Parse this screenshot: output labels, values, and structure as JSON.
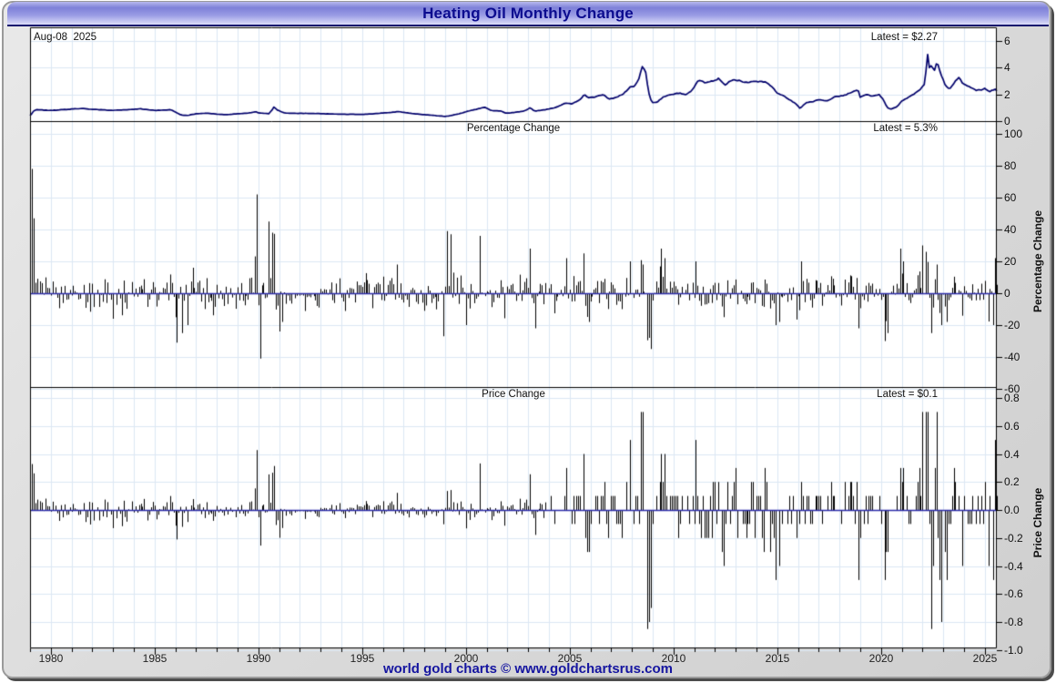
{
  "window": {
    "title": "Heating Oil Monthly Change"
  },
  "header": {
    "date_label": "Aug-08  2025"
  },
  "footer": {
    "credit": "world gold charts © www.goldchartsrus.com"
  },
  "colors": {
    "title_text": "#0b0b8f",
    "line": "#00006b",
    "bars": "#000000",
    "zero_line": "#2d2daa",
    "grid": "#dce8f4",
    "panel_bg": "#ffffff",
    "border": "#000000",
    "footer_text": "#1515a0"
  },
  "chart_data": [
    {
      "type": "line",
      "name": "heating-oil-price",
      "latest_label": "Latest = $2.27",
      "latest_value": 2.27,
      "ylim": [
        0,
        6.8
      ],
      "y_ticks": [
        [
          "6",
          6
        ],
        [
          "4",
          4
        ],
        [
          "2",
          2
        ],
        [
          "0",
          0
        ]
      ],
      "keypoints": [
        [
          1979.0,
          0.42
        ],
        [
          1979.08,
          0.55
        ],
        [
          1979.17,
          0.75
        ],
        [
          1979.3,
          0.85
        ],
        [
          1979.6,
          0.83
        ],
        [
          1980.0,
          0.8
        ],
        [
          1980.5,
          0.85
        ],
        [
          1981.0,
          0.9
        ],
        [
          1981.5,
          0.95
        ],
        [
          1982.0,
          0.88
        ],
        [
          1982.5,
          0.85
        ],
        [
          1983.0,
          0.8
        ],
        [
          1983.5,
          0.85
        ],
        [
          1984.0,
          0.88
        ],
        [
          1984.3,
          0.92
        ],
        [
          1985.0,
          0.8
        ],
        [
          1985.8,
          0.85
        ],
        [
          1986.1,
          0.6
        ],
        [
          1986.3,
          0.45
        ],
        [
          1986.6,
          0.42
        ],
        [
          1986.8,
          0.5
        ],
        [
          1987.0,
          0.55
        ],
        [
          1987.5,
          0.6
        ],
        [
          1988.0,
          0.52
        ],
        [
          1988.5,
          0.48
        ],
        [
          1989.0,
          0.55
        ],
        [
          1989.5,
          0.6
        ],
        [
          1989.9,
          0.7
        ],
        [
          1990.0,
          0.62
        ],
        [
          1990.5,
          0.55
        ],
        [
          1990.7,
          0.9
        ],
        [
          1990.75,
          1.05
        ],
        [
          1990.9,
          0.85
        ],
        [
          1991.1,
          0.7
        ],
        [
          1991.3,
          0.6
        ],
        [
          1992.0,
          0.58
        ],
        [
          1993.0,
          0.56
        ],
        [
          1994.0,
          0.52
        ],
        [
          1995.0,
          0.5
        ],
        [
          1996.0,
          0.6
        ],
        [
          1996.8,
          0.72
        ],
        [
          1997.0,
          0.65
        ],
        [
          1997.5,
          0.55
        ],
        [
          1998.0,
          0.48
        ],
        [
          1998.5,
          0.42
        ],
        [
          1999.0,
          0.35
        ],
        [
          1999.3,
          0.42
        ],
        [
          1999.8,
          0.6
        ],
        [
          2000.1,
          0.75
        ],
        [
          2000.7,
          0.95
        ],
        [
          2000.9,
          1.05
        ],
        [
          2001.2,
          0.8
        ],
        [
          2001.7,
          0.75
        ],
        [
          2001.9,
          0.6
        ],
        [
          2002.2,
          0.62
        ],
        [
          2002.8,
          0.75
        ],
        [
          2003.1,
          1.0
        ],
        [
          2003.3,
          0.75
        ],
        [
          2003.8,
          0.85
        ],
        [
          2004.3,
          1.0
        ],
        [
          2004.8,
          1.35
        ],
        [
          2005.1,
          1.3
        ],
        [
          2005.5,
          1.6
        ],
        [
          2005.7,
          2.0
        ],
        [
          2005.9,
          1.75
        ],
        [
          2006.2,
          1.8
        ],
        [
          2006.6,
          2.0
        ],
        [
          2006.9,
          1.65
        ],
        [
          2007.2,
          1.75
        ],
        [
          2007.6,
          2.05
        ],
        [
          2007.9,
          2.55
        ],
        [
          2008.1,
          2.6
        ],
        [
          2008.3,
          3.0
        ],
        [
          2008.5,
          4.1
        ],
        [
          2008.65,
          3.8
        ],
        [
          2008.8,
          2.2
        ],
        [
          2008.95,
          1.4
        ],
        [
          2009.2,
          1.4
        ],
        [
          2009.5,
          1.8
        ],
        [
          2009.9,
          2.0
        ],
        [
          2010.3,
          2.1
        ],
        [
          2010.6,
          1.95
        ],
        [
          2010.9,
          2.3
        ],
        [
          2011.2,
          3.05
        ],
        [
          2011.5,
          2.9
        ],
        [
          2011.9,
          3.0
        ],
        [
          2012.2,
          3.2
        ],
        [
          2012.5,
          2.7
        ],
        [
          2012.8,
          3.1
        ],
        [
          2013.1,
          3.05
        ],
        [
          2013.5,
          2.9
        ],
        [
          2013.9,
          3.0
        ],
        [
          2014.2,
          2.95
        ],
        [
          2014.5,
          2.9
        ],
        [
          2014.8,
          2.5
        ],
        [
          2015.0,
          2.1
        ],
        [
          2015.3,
          1.9
        ],
        [
          2015.5,
          1.7
        ],
        [
          2015.9,
          1.3
        ],
        [
          2016.1,
          0.95
        ],
        [
          2016.4,
          1.4
        ],
        [
          2016.7,
          1.45
        ],
        [
          2017.0,
          1.6
        ],
        [
          2017.4,
          1.5
        ],
        [
          2017.8,
          1.85
        ],
        [
          2018.2,
          1.9
        ],
        [
          2018.7,
          2.25
        ],
        [
          2018.9,
          2.3
        ],
        [
          2019.0,
          1.8
        ],
        [
          2019.3,
          2.0
        ],
        [
          2019.6,
          1.85
        ],
        [
          2019.9,
          2.0
        ],
        [
          2020.1,
          1.65
        ],
        [
          2020.3,
          1.0
        ],
        [
          2020.5,
          0.9
        ],
        [
          2020.8,
          1.1
        ],
        [
          2021.0,
          1.5
        ],
        [
          2021.3,
          1.75
        ],
        [
          2021.6,
          2.05
        ],
        [
          2021.9,
          2.4
        ],
        [
          2022.1,
          2.8
        ],
        [
          2022.2,
          4.2
        ],
        [
          2022.25,
          5.0
        ],
        [
          2022.35,
          3.8
        ],
        [
          2022.45,
          4.3
        ],
        [
          2022.55,
          3.6
        ],
        [
          2022.7,
          4.5
        ],
        [
          2022.8,
          3.9
        ],
        [
          2022.95,
          3.3
        ],
        [
          2023.1,
          2.7
        ],
        [
          2023.3,
          2.4
        ],
        [
          2023.6,
          3.0
        ],
        [
          2023.75,
          3.3
        ],
        [
          2023.9,
          2.9
        ],
        [
          2024.1,
          2.7
        ],
        [
          2024.3,
          2.55
        ],
        [
          2024.6,
          2.3
        ],
        [
          2024.9,
          2.35
        ],
        [
          2025.0,
          2.45
        ],
        [
          2025.2,
          2.2
        ],
        [
          2025.35,
          2.3
        ],
        [
          2025.5,
          2.4
        ],
        [
          2025.58,
          2.27
        ]
      ]
    },
    {
      "type": "bar",
      "name": "percentage-change",
      "caption": "Percentage Change",
      "axis_label": "Percentage Change",
      "latest_label": "Latest = 5.3%",
      "latest_value": 5.3,
      "ylim": [
        -60,
        100
      ],
      "y_ticks": [
        [
          "100",
          100
        ],
        [
          "80",
          80
        ],
        [
          "60",
          60
        ],
        [
          "40",
          40
        ],
        [
          "20",
          20
        ],
        [
          "0",
          0
        ],
        [
          "-20",
          -20
        ],
        [
          "-40",
          -40
        ],
        [
          "-60",
          -60
        ]
      ],
      "noise_amplitude": 8,
      "spikes": [
        [
          1979.08,
          78
        ],
        [
          1979.17,
          47
        ],
        [
          1983.0,
          -16
        ],
        [
          1986.1,
          -31
        ],
        [
          1986.3,
          -25
        ],
        [
          1986.6,
          -20
        ],
        [
          1986.8,
          16
        ],
        [
          1989.9,
          62
        ],
        [
          1990.1,
          -41
        ],
        [
          1990.5,
          45
        ],
        [
          1990.7,
          38
        ],
        [
          1991.0,
          -24
        ],
        [
          1991.2,
          -18
        ],
        [
          1996.7,
          18
        ],
        [
          1998.9,
          -27
        ],
        [
          1999.1,
          39
        ],
        [
          1999.25,
          37
        ],
        [
          2000.0,
          -20
        ],
        [
          2000.7,
          36
        ],
        [
          2003.1,
          28
        ],
        [
          2003.3,
          -22
        ],
        [
          2004.8,
          22
        ],
        [
          2005.7,
          25
        ],
        [
          2005.9,
          -18
        ],
        [
          2007.9,
          20
        ],
        [
          2008.5,
          18
        ],
        [
          2008.8,
          -28
        ],
        [
          2008.95,
          -35
        ],
        [
          2009.4,
          28
        ],
        [
          2009.55,
          22
        ],
        [
          2011.1,
          20
        ],
        [
          2012.4,
          -15
        ],
        [
          2014.9,
          -20
        ],
        [
          2015.1,
          -18
        ],
        [
          2016.2,
          20
        ],
        [
          2018.9,
          -22
        ],
        [
          2020.2,
          -30
        ],
        [
          2020.35,
          -25
        ],
        [
          2020.9,
          28
        ],
        [
          2021.1,
          20
        ],
        [
          2022.0,
          30
        ],
        [
          2022.2,
          26
        ],
        [
          2022.4,
          -25
        ],
        [
          2022.7,
          18
        ],
        [
          2022.9,
          -20
        ],
        [
          2023.2,
          -18
        ],
        [
          2025.4,
          -20
        ],
        [
          2025.5,
          22
        ],
        [
          2025.583,
          5.3
        ]
      ]
    },
    {
      "type": "bar",
      "name": "price-change",
      "caption": "Price Change",
      "axis_label": "Price Change",
      "latest_label": "Latest = $0.1",
      "latest_value": 0.1,
      "ylim": [
        -1.0,
        0.8
      ],
      "y_ticks": [
        [
          "0.8",
          0.8
        ],
        [
          "0.6",
          0.6
        ],
        [
          "0.4",
          0.4
        ],
        [
          "0.2",
          0.2
        ],
        [
          "0.0",
          0.0
        ],
        [
          "-0.2",
          -0.2
        ],
        [
          "-0.4",
          -0.4
        ],
        [
          "-0.6",
          -0.6
        ],
        [
          "-0.8",
          -0.8
        ],
        [
          "-1.0",
          -1.0
        ]
      ],
      "derived": "monthly percentage change times prior price, dollars per gallon"
    }
  ],
  "x_axis": {
    "start": 1979.0,
    "end": 2025.583,
    "major_tick_labels": [
      [
        "1980",
        1980
      ],
      [
        "1985",
        1985
      ],
      [
        "1990",
        1990
      ],
      [
        "1995",
        1995
      ],
      [
        "2000",
        2000
      ],
      [
        "2005",
        2005
      ],
      [
        "2010",
        2010
      ],
      [
        "2015",
        2015
      ],
      [
        "2020",
        2020
      ],
      [
        "2025",
        2025
      ]
    ],
    "minor_tick_every_years": 1
  }
}
